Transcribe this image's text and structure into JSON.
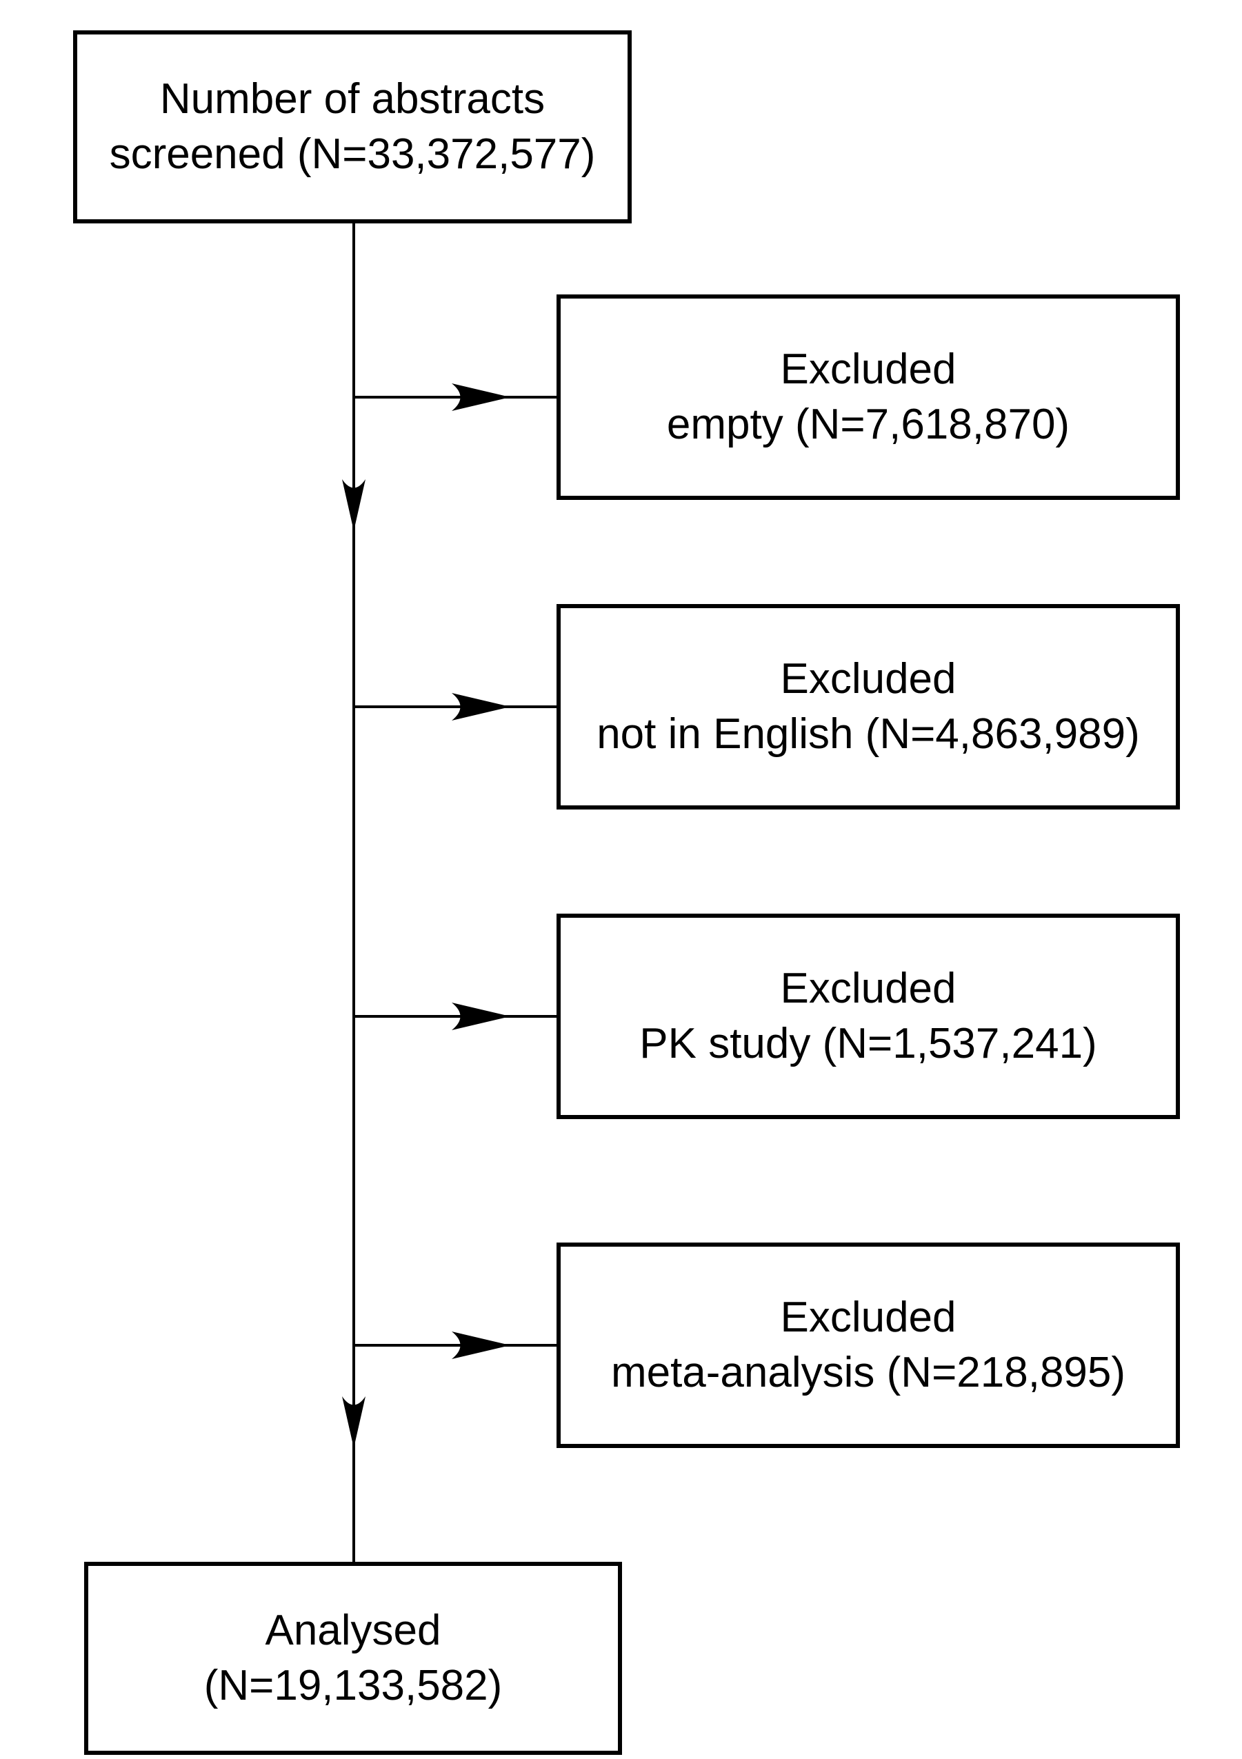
{
  "flowchart": {
    "start": {
      "line1": "Number of abstracts",
      "line2": "screened (N=33,372,577)"
    },
    "exclusions": [
      {
        "line1": "Excluded",
        "line2": "empty (N=7,618,870)"
      },
      {
        "line1": "Excluded",
        "line2": "not in English (N=4,863,989)"
      },
      {
        "line1": "Excluded",
        "line2": "PK study (N=1,537,241)"
      },
      {
        "line1": "Excluded",
        "line2": "meta-analysis (N=218,895)"
      }
    ],
    "end": {
      "line1": "Analysed",
      "line2": "(N=19,133,582)"
    }
  },
  "colors": {
    "stroke": "#000000",
    "background": "#ffffff"
  }
}
